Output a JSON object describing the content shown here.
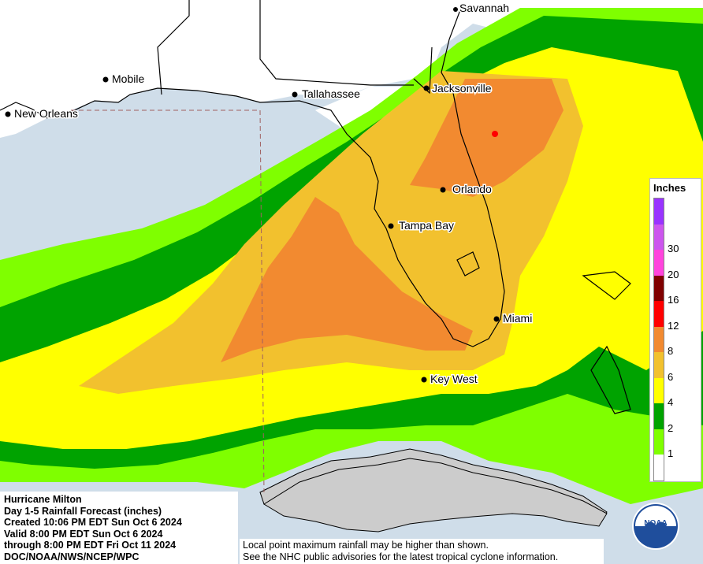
{
  "map": {
    "cities": [
      {
        "name": "Savannah"
      },
      {
        "name": "Jacksonville"
      },
      {
        "name": "Tallahassee"
      },
      {
        "name": "Mobile"
      },
      {
        "name": "New Orleans"
      },
      {
        "name": "Orlando"
      },
      {
        "name": "Tampa Bay"
      },
      {
        "name": "Miami"
      },
      {
        "name": "Key West"
      }
    ],
    "colors": {
      "water": "#cfdde9",
      "land_background": "#ffffff",
      "cuba_land": "#cccccc",
      "rain_1": "#7fff00",
      "rain_2": "#00a300",
      "rain_4": "#ffff00",
      "rain_6": "#f2c12e",
      "rain_8": "#f28a30",
      "rain_12": "#ff0000",
      "rain_16": "#800000",
      "rain_20": "#ff00ff",
      "rain_30": "#9933ff"
    }
  },
  "legend": {
    "title": "Inches",
    "bins": [
      {
        "label": "",
        "color": "#9933ff"
      },
      {
        "label": "30",
        "color": "#cc55ee"
      },
      {
        "label": "20",
        "color": "#ff44dd"
      },
      {
        "label": "16",
        "color": "#800000"
      },
      {
        "label": "12",
        "color": "#ff0000"
      },
      {
        "label": "8",
        "color": "#f28a30"
      },
      {
        "label": "6",
        "color": "#f2c12e"
      },
      {
        "label": "4",
        "color": "#ffff00"
      },
      {
        "label": "2",
        "color": "#00a300"
      },
      {
        "label": "1",
        "color": "#7fff00"
      },
      {
        "label": "",
        "color": "#ffffff"
      }
    ]
  },
  "info": {
    "lines": [
      "Hurricane Milton",
      "Day 1-5 Rainfall Forecast (inches)",
      "Created 10:06 PM EDT Sun Oct 6 2024",
      "Valid 8:00 PM EDT Sun Oct 6 2024",
      "through 8:00 PM EDT Fri Oct 11 2024",
      "DOC/NOAA/NWS/NCEP/WPC"
    ]
  },
  "disclaimer": {
    "lines": [
      "Local point maximum rainfall may be higher than shown.",
      "See the NHC public advisories for the latest tropical cyclone information."
    ]
  },
  "logo": {
    "text": "NOAA",
    "icon": "noaa-seagull-logo"
  }
}
